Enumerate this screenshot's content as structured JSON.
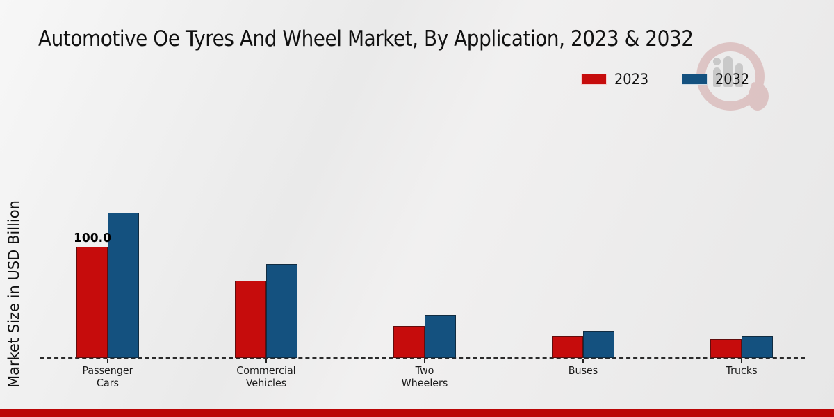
{
  "title": "Automotive Oe Tyres And Wheel Market, By Application, 2023 & 2032",
  "ylabel": "Market Size in USD Billion",
  "legend": {
    "position": "top-right",
    "items": [
      {
        "label": "2023",
        "color": "#c60c0c"
      },
      {
        "label": "2032",
        "color": "#14517f"
      }
    ]
  },
  "watermark_icon": "mrfr-logo-watermark",
  "footer": {
    "bar_color": "#bb0606"
  },
  "chart_data": {
    "type": "bar",
    "title": "Automotive Oe Tyres And Wheel Market, By Application, 2023 & 2032",
    "ylabel": "Market Size in USD Billion",
    "y_unit": "USD Billion",
    "categories": [
      "Passenger Cars",
      "Commercial Vehicles",
      "Two Wheelers",
      "Buses",
      "Trucks"
    ],
    "category_label_lines": [
      [
        "Passenger",
        "Cars"
      ],
      [
        "Commercial",
        "Vehicles"
      ],
      [
        "Two",
        "Wheelers"
      ],
      [
        "Buses"
      ],
      [
        "Trucks"
      ]
    ],
    "series": [
      {
        "name": "2023",
        "color": "#c60c0c",
        "values": [
          100.0,
          69.5,
          29.0,
          19.5,
          17.0
        ]
      },
      {
        "name": "2032",
        "color": "#14517f",
        "values": [
          130.6,
          84.5,
          39.0,
          24.5,
          19.5
        ]
      }
    ],
    "value_labels": [
      {
        "series": "2023",
        "category": "Passenger Cars",
        "text": "100.0"
      }
    ],
    "ylim": [
      0,
      140
    ],
    "grid": false,
    "baseline_style": "dashed",
    "legend_position": "top-right"
  }
}
